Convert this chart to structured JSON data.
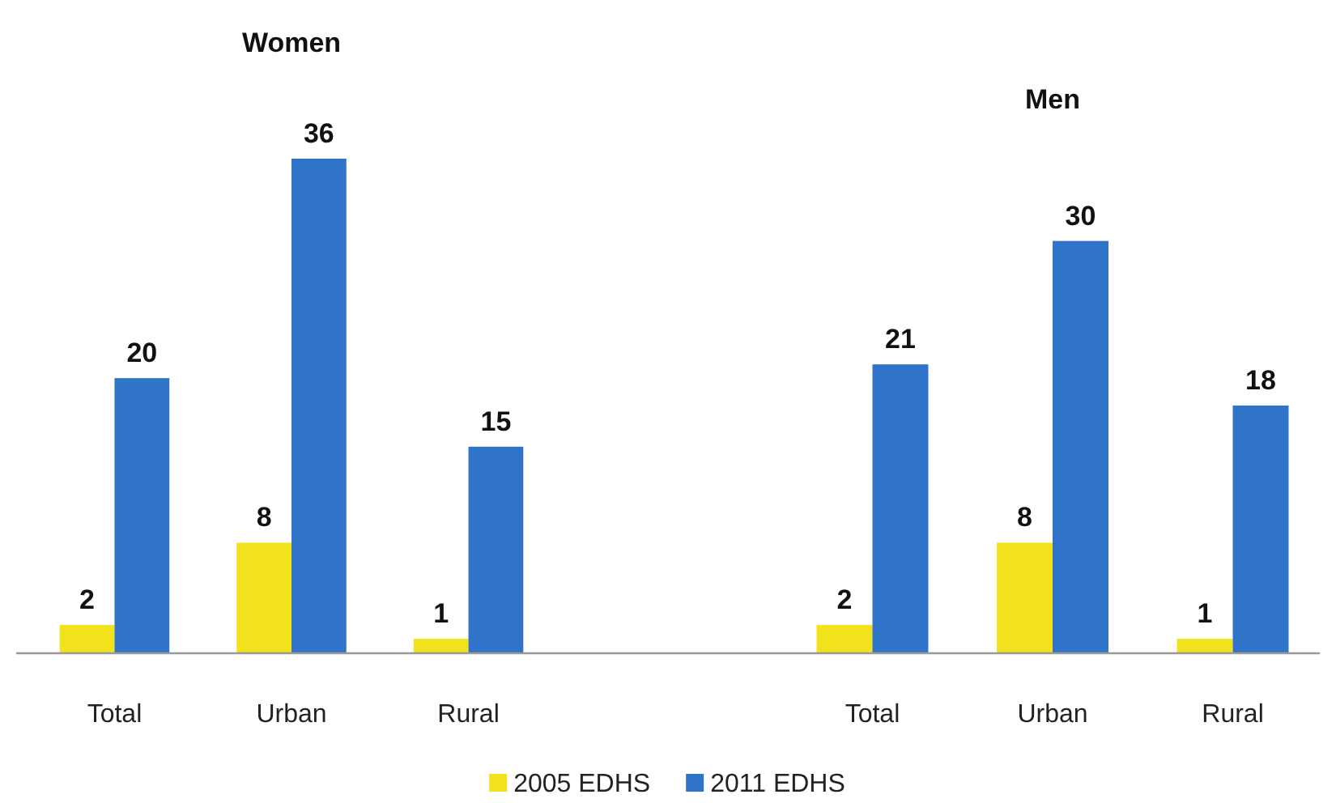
{
  "chart_data": [
    {
      "type": "bar",
      "title": "Women",
      "categories": [
        "Total",
        "Urban",
        "Rural"
      ],
      "series": [
        {
          "name": "2005 EDHS",
          "color": "#f2e21c",
          "values": [
            2,
            8,
            1
          ]
        },
        {
          "name": "2011 EDHS",
          "color": "#2f74c8",
          "values": [
            20,
            36,
            15
          ]
        }
      ],
      "data_labels": true,
      "legend": "bottom"
    },
    {
      "type": "bar",
      "title": "Men",
      "categories": [
        "Total",
        "Urban",
        "Rural"
      ],
      "series": [
        {
          "color": "#f2e21c",
          "values": [
            2,
            8,
            1
          ]
        },
        {
          "color": "#2f74c8",
          "values": [
            21,
            30,
            18
          ]
        }
      ],
      "data_labels": true
    }
  ]
}
